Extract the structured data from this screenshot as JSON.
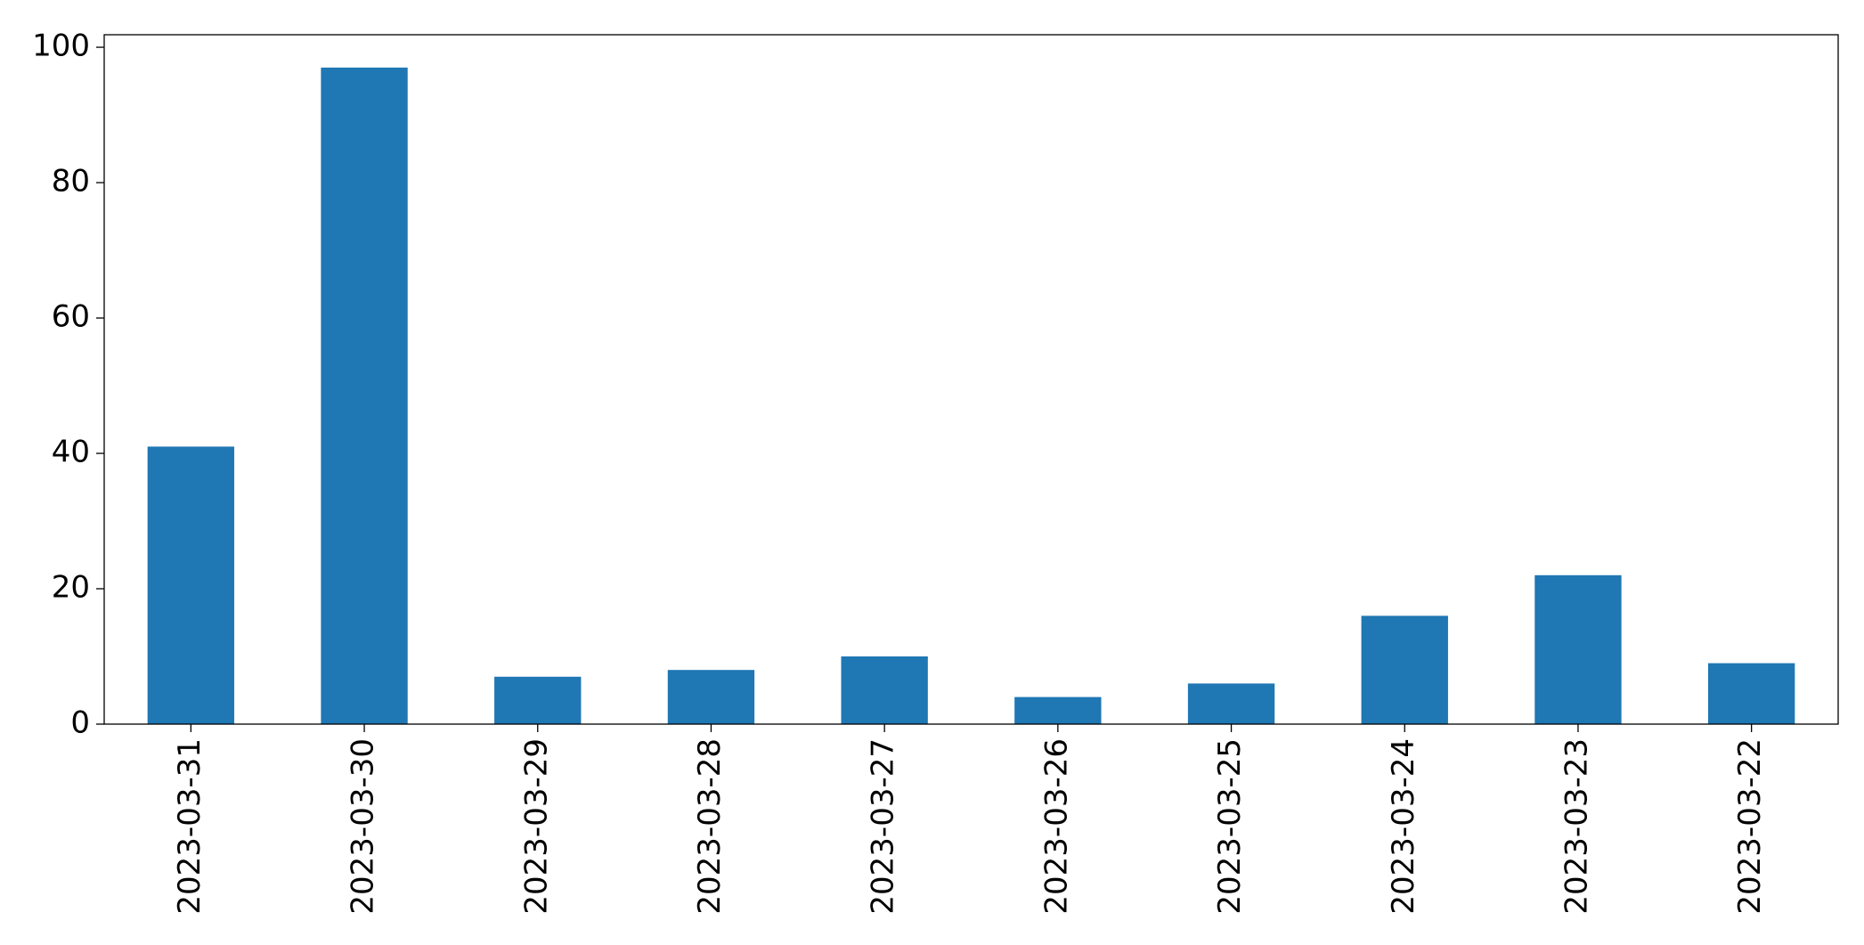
{
  "chart_data": {
    "type": "bar",
    "categories": [
      "2023-03-31",
      "2023-03-30",
      "2023-03-29",
      "2023-03-28",
      "2023-03-27",
      "2023-03-26",
      "2023-03-25",
      "2023-03-24",
      "2023-03-23",
      "2023-03-22"
    ],
    "values": [
      41,
      97,
      7,
      8,
      10,
      4,
      6,
      16,
      22,
      9
    ],
    "color": "#1f77b4",
    "ylim": [
      0,
      101.85
    ],
    "yticks": [
      0,
      20,
      40,
      60,
      80,
      100
    ],
    "grid": false
  }
}
